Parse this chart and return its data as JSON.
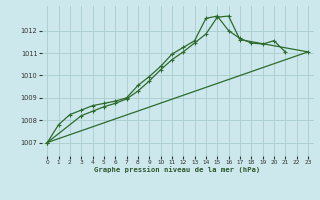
{
  "title": "Graphe pression niveau de la mer (hPa)",
  "background_color": "#cce8ec",
  "grid_color": "#aacccc",
  "line_color": "#2d6b2d",
  "xlim": [
    -0.5,
    23.5
  ],
  "ylim": [
    1006.4,
    1013.1
  ],
  "yticks": [
    1007,
    1008,
    1009,
    1010,
    1011,
    1012
  ],
  "xticks": [
    0,
    1,
    2,
    3,
    4,
    5,
    6,
    7,
    8,
    9,
    10,
    11,
    12,
    13,
    14,
    15,
    16,
    17,
    18,
    19,
    20,
    21,
    22,
    23
  ],
  "series1": {
    "x": [
      0,
      1,
      2,
      3,
      4,
      5,
      6,
      7,
      8,
      9,
      10,
      11,
      12,
      13,
      14,
      15,
      16,
      17,
      18,
      19,
      20,
      21
    ],
    "y": [
      1007.0,
      1007.8,
      1008.25,
      1008.45,
      1008.65,
      1008.75,
      1008.85,
      1009.0,
      1009.55,
      1009.95,
      1010.4,
      1010.95,
      1011.25,
      1011.55,
      1012.55,
      1012.65,
      1012.0,
      1011.65,
      1011.45,
      1011.4,
      1011.55,
      1011.05
    ]
  },
  "series2": {
    "x": [
      0,
      3,
      4,
      5,
      6,
      7,
      8,
      9,
      10,
      11,
      12,
      13,
      14,
      15,
      16,
      17,
      23
    ],
    "y": [
      1007.0,
      1008.2,
      1008.4,
      1008.6,
      1008.75,
      1008.95,
      1009.3,
      1009.75,
      1010.25,
      1010.7,
      1011.05,
      1011.45,
      1011.85,
      1012.6,
      1012.65,
      1011.6,
      1011.05
    ]
  },
  "series3": {
    "x": [
      0,
      23
    ],
    "y": [
      1007.0,
      1011.05
    ]
  }
}
